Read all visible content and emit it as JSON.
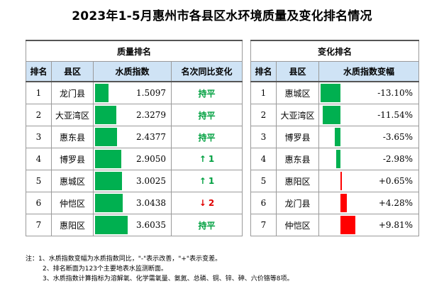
{
  "title": "2023年1-5月惠州市各县区水环境质量及变化排名情况",
  "quality": {
    "group_label": "质量排名",
    "headers": [
      "排名",
      "县区",
      "水质指数",
      "名次同比变化"
    ],
    "rows": [
      {
        "rank": "1",
        "district": "龙门县",
        "index": "1.5097",
        "change": "持平",
        "dir": "flat",
        "value": 1.5097
      },
      {
        "rank": "2",
        "district": "大亚湾区",
        "index": "2.3279",
        "change": "持平",
        "dir": "flat",
        "value": 2.3279
      },
      {
        "rank": "3",
        "district": "惠东县",
        "index": "2.4377",
        "change": "持平",
        "dir": "flat",
        "value": 2.4377
      },
      {
        "rank": "4",
        "district": "博罗县",
        "index": "2.9050",
        "change": "1",
        "dir": "up",
        "value": 2.905
      },
      {
        "rank": "5",
        "district": "惠城区",
        "index": "3.0025",
        "change": "1",
        "dir": "up",
        "value": 3.0025
      },
      {
        "rank": "6",
        "district": "仲恺区",
        "index": "3.0438",
        "change": "2",
        "dir": "down",
        "value": 3.0438
      },
      {
        "rank": "7",
        "district": "惠阳区",
        "index": "3.6035",
        "change": "持平",
        "dir": "flat",
        "value": 3.6035
      }
    ]
  },
  "change": {
    "group_label": "变化排名",
    "headers": [
      "排名",
      "县区",
      "水质指数变幅"
    ],
    "rows": [
      {
        "rank": "1",
        "district": "惠城区",
        "pct": "-13.10%",
        "value": -13.1
      },
      {
        "rank": "2",
        "district": "大亚湾区",
        "pct": "-11.54%",
        "value": -11.54
      },
      {
        "rank": "3",
        "district": "博罗县",
        "pct": "-3.65%",
        "value": -3.65
      },
      {
        "rank": "4",
        "district": "惠东县",
        "pct": "-2.98%",
        "value": -2.98
      },
      {
        "rank": "5",
        "district": "惠阳区",
        "pct": "+0.65%",
        "value": 0.65
      },
      {
        "rank": "6",
        "district": "龙门县",
        "pct": "+4.28%",
        "value": 4.28
      },
      {
        "rank": "7",
        "district": "仲恺区",
        "pct": "+9.81%",
        "value": 9.81
      }
    ]
  },
  "colors": {
    "good": "#00b050",
    "bad": "#ff0000",
    "header_bg": "#cfe3f5",
    "up_arrow": "#00a040",
    "down_arrow": "#e00000"
  },
  "notes": [
    "注：1、水质指数变幅为水质指数同比，\"-\"表示改善，\"+\"表示变差。",
    "2、排名断面为123个主要地表水监测断面。",
    "3、水质指数计算指标为溶解氧、化学需氧量、氨氮、总磷、铜、锌、砷、六价铬等8项。"
  ]
}
